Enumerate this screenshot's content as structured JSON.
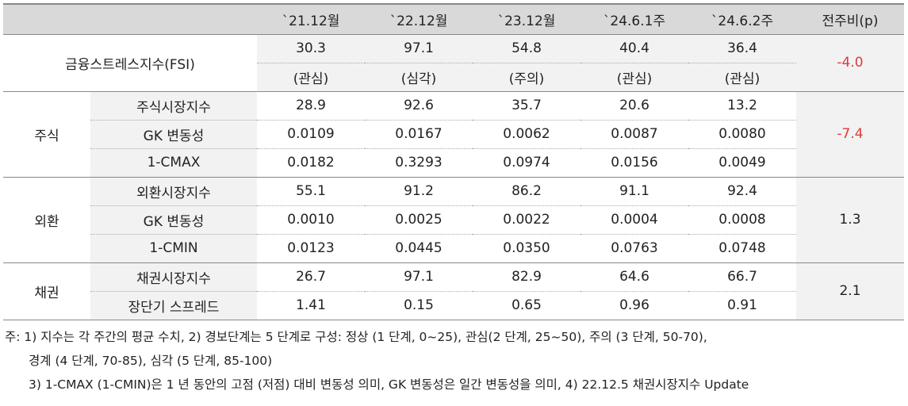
{
  "header": [
    "",
    "",
    "`21.12월",
    "`22.12월",
    "`23.12월",
    "`24.6.1주",
    "`24.6.2주",
    "전주비(p)"
  ],
  "fsi": {
    "label": "금융스트레스지수(FSI)",
    "values": [
      "30.3",
      "97.1",
      "54.8",
      "40.4",
      "36.4"
    ],
    "stages": [
      "(관심)",
      "(심각)",
      "(주의)",
      "(관심)",
      "(관심)"
    ],
    "change": "-4.0"
  },
  "groups": [
    {
      "name": "주식",
      "change": "-7.4",
      "rows": [
        {
          "label": "주식시장지수",
          "values": [
            "28.9",
            "92.6",
            "35.7",
            "20.6",
            "13.2"
          ]
        },
        {
          "label": "GK 변동성",
          "values": [
            "0.0109",
            "0.0167",
            "0.0062",
            "0.0087",
            "0.0080"
          ]
        },
        {
          "label": "1-CMAX",
          "values": [
            "0.0182",
            "0.3293",
            "0.0974",
            "0.0156",
            "0.0049"
          ]
        }
      ]
    },
    {
      "name": "외환",
      "change": "1.3",
      "rows": [
        {
          "label": "외환시장지수",
          "values": [
            "55.1",
            "91.2",
            "86.2",
            "91.1",
            "92.4"
          ]
        },
        {
          "label": "GK 변동성",
          "values": [
            "0.0010",
            "0.0025",
            "0.0022",
            "0.0004",
            "0.0008"
          ]
        },
        {
          "label": "1-CMIN",
          "values": [
            "0.0123",
            "0.0445",
            "0.0350",
            "0.0763",
            "0.0748"
          ]
        }
      ]
    },
    {
      "name": "채권",
      "change": "2.1",
      "rows": [
        {
          "label": "채권시장지수",
          "values": [
            "26.7",
            "97.1",
            "82.9",
            "64.6",
            "66.7"
          ]
        },
        {
          "label": "장단기 스프레드",
          "values": [
            "1.41",
            "0.15",
            "0.65",
            "0.96",
            "0.91"
          ]
        }
      ]
    }
  ],
  "notes": [
    "주: 1) 지수는 각 주간의 평균 수치, 2) 경보단계는 5 단계로 구성: 정상 (1 단계, 0~25), 관심(2 단계, 25~50), 주의 (3 단계, 50-70),",
    "경계 (4 단계, 70-85), 심각 (5 단계, 85-100)",
    "3) 1-CMAX (1-CMIN)은 1 년 동안의 고점 (저점) 대비 변동성 의미, GK 변동성은 일간 변동성을 의미, 4) 22.12.5 채권시장지수 Update"
  ],
  "colors": {
    "header_bg": "#d9d9d9",
    "shade_bg": "#f2f2f2",
    "negative": "#e03a3a"
  }
}
